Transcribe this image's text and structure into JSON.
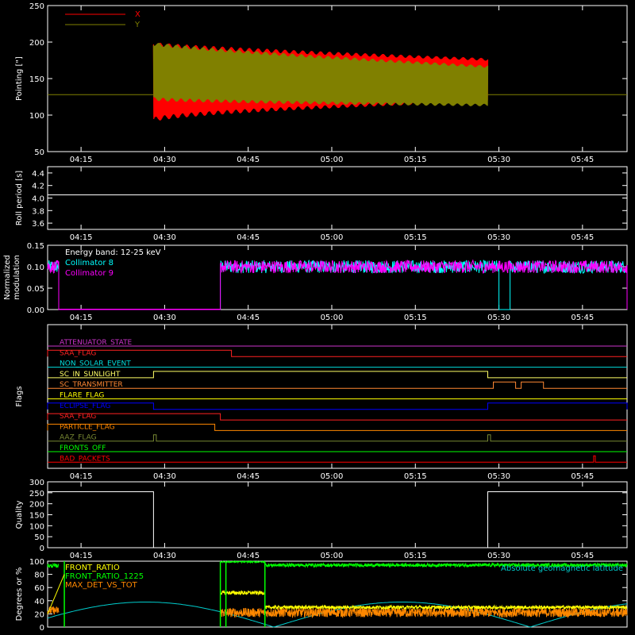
{
  "chart_data": [
    {
      "type": "line",
      "ylabel": "Pointing [\"]",
      "ylim": [
        50,
        250
      ],
      "yticks": [
        50,
        100,
        150,
        200,
        250
      ],
      "xtick_labels": [
        "04:15",
        "04:30",
        "04:45",
        "05:00",
        "05:15",
        "05:30",
        "05:45"
      ],
      "legend": {
        "placement": "top-left"
      },
      "series": [
        {
          "name": "X",
          "color": "#ff0000",
          "x_start": "04:28",
          "x_end": "05:28",
          "upper_start": 200,
          "lower_start": 90,
          "upper_end": 178,
          "lower_end": 118,
          "period_minutes": 1.6
        },
        {
          "name": "Y",
          "color": "#808000",
          "x_start": "04:28",
          "x_end": "05:28",
          "upper_start": 200,
          "lower_start": 120,
          "upper_end": 168,
          "lower_end": 112,
          "period_minutes": 1.6
        }
      ],
      "reference_line": {
        "y": 128,
        "color": "#808000"
      }
    },
    {
      "type": "line",
      "ylabel": "Roll period [s]",
      "ylim": [
        3.5,
        4.5
      ],
      "yticks": [
        3.6,
        3.8,
        4.0,
        4.2,
        4.4
      ],
      "xtick_labels": [
        "04:15",
        "04:30",
        "04:45",
        "05:00",
        "05:15",
        "05:30",
        "05:45"
      ],
      "series": [
        {
          "name": "",
          "color": "#ffffff",
          "x": [
            "04:09",
            "05:53"
          ],
          "y": [
            4.05,
            4.05
          ]
        }
      ]
    },
    {
      "type": "line",
      "ylabel": "Normalized modulation",
      "ylim": [
        0,
        0.15
      ],
      "yticks": [
        0.0,
        0.05,
        0.1,
        0.15
      ],
      "xtick_labels": [
        "04:15",
        "04:30",
        "04:45",
        "05:00",
        "05:15",
        "05:30",
        "05:45"
      ],
      "legend": {
        "placement": "top-left"
      },
      "annotation": "Energy band: 12-25 keV",
      "series": [
        {
          "name": "Collimator 8",
          "color": "#00ffff",
          "active_ranges": [
            [
              "04:09",
              "04:11"
            ],
            [
              "04:40",
              "05:30"
            ],
            [
              "05:32",
              "05:53"
            ]
          ],
          "level": 0.1,
          "noise": 0.015
        },
        {
          "name": "Collimator 9",
          "color": "#ff00ff",
          "active_ranges": [
            [
              "04:09",
              "04:11"
            ],
            [
              "04:40",
              "05:53"
            ]
          ],
          "level": 0.1,
          "noise": 0.015
        }
      ]
    },
    {
      "type": "line",
      "ylabel": "Flags",
      "xtick_labels": [
        "04:15",
        "04:30",
        "04:45",
        "05:00",
        "05:15",
        "05:30",
        "05:45"
      ],
      "flags": [
        {
          "name": "ATTENUATOR_STATE",
          "color": "#cc33cc",
          "high": []
        },
        {
          "name": "SAA_FLAG",
          "color": "#ff2222",
          "high": [
            [
              "04:09",
              "04:42"
            ]
          ]
        },
        {
          "name": "NON_SOLAR_EVENT",
          "color": "#00dddd",
          "high": []
        },
        {
          "name": "SC_IN_SUNLIGHT",
          "color": "#ffff66",
          "high": [
            [
              "04:28",
              "05:28"
            ]
          ]
        },
        {
          "name": "SC_TRANSMITTER",
          "color": "#ff8833",
          "high": [
            [
              "05:29",
              "05:33"
            ],
            [
              "05:34",
              "05:38"
            ]
          ]
        },
        {
          "name": "FLARE_FLAG",
          "color": "#ffff00",
          "high": []
        },
        {
          "name": "ECLIPSE_FLAG",
          "color": "#0000ff",
          "high": [
            [
              "04:09",
              "04:28"
            ],
            [
              "05:28",
              "05:53"
            ]
          ]
        },
        {
          "name": "SAA_FLAG",
          "color": "#ff2222",
          "high": [
            [
              "04:09",
              "04:40"
            ]
          ]
        },
        {
          "name": "PARTICLE_FLAG",
          "color": "#ff8800",
          "high": [
            [
              "04:09",
              "04:39"
            ]
          ]
        },
        {
          "name": "AAZ_FLAG",
          "color": "#778833",
          "high": [
            [
              "04:28",
              "04:28.5"
            ],
            [
              "05:28",
              "05:28.5"
            ]
          ]
        },
        {
          "name": "FRONTS_OFF",
          "color": "#00ff00",
          "high": []
        },
        {
          "name": "BAD_PACKETS",
          "color": "#ff0000",
          "high": [
            [
              "05:47",
              "05:47.3"
            ]
          ]
        }
      ]
    },
    {
      "type": "line",
      "ylabel": "Quality",
      "ylim": [
        0,
        300
      ],
      "yticks": [
        0,
        50,
        100,
        150,
        200,
        250,
        300
      ],
      "xtick_labels": [
        "04:15",
        "04:30",
        "04:45",
        "05:00",
        "05:15",
        "05:30",
        "05:45"
      ],
      "series": [
        {
          "name": "",
          "color": "#ffffff",
          "x": [
            "04:09",
            "04:28",
            "04:28",
            "05:28",
            "05:28",
            "05:53"
          ],
          "y": [
            255,
            255,
            0,
            0,
            255,
            255
          ]
        }
      ]
    },
    {
      "type": "line",
      "ylabel": "Degrees or %",
      "ylim": [
        0,
        100
      ],
      "yticks": [
        0,
        20,
        40,
        60,
        80,
        100
      ],
      "legend": {
        "placement": "top-left"
      },
      "annotation": "Absolute geomagnetic latitude",
      "series": [
        {
          "name": "FRONT_RATIO",
          "color": "#ffff00"
        },
        {
          "name": "FRONT_RATIO_1225",
          "color": "#00ff00"
        },
        {
          "name": "MAX_DET_VS_TOT",
          "color": "#ff8800"
        },
        {
          "name": "Absolute geomagnetic latitude",
          "color": "#00cccc"
        }
      ]
    }
  ]
}
